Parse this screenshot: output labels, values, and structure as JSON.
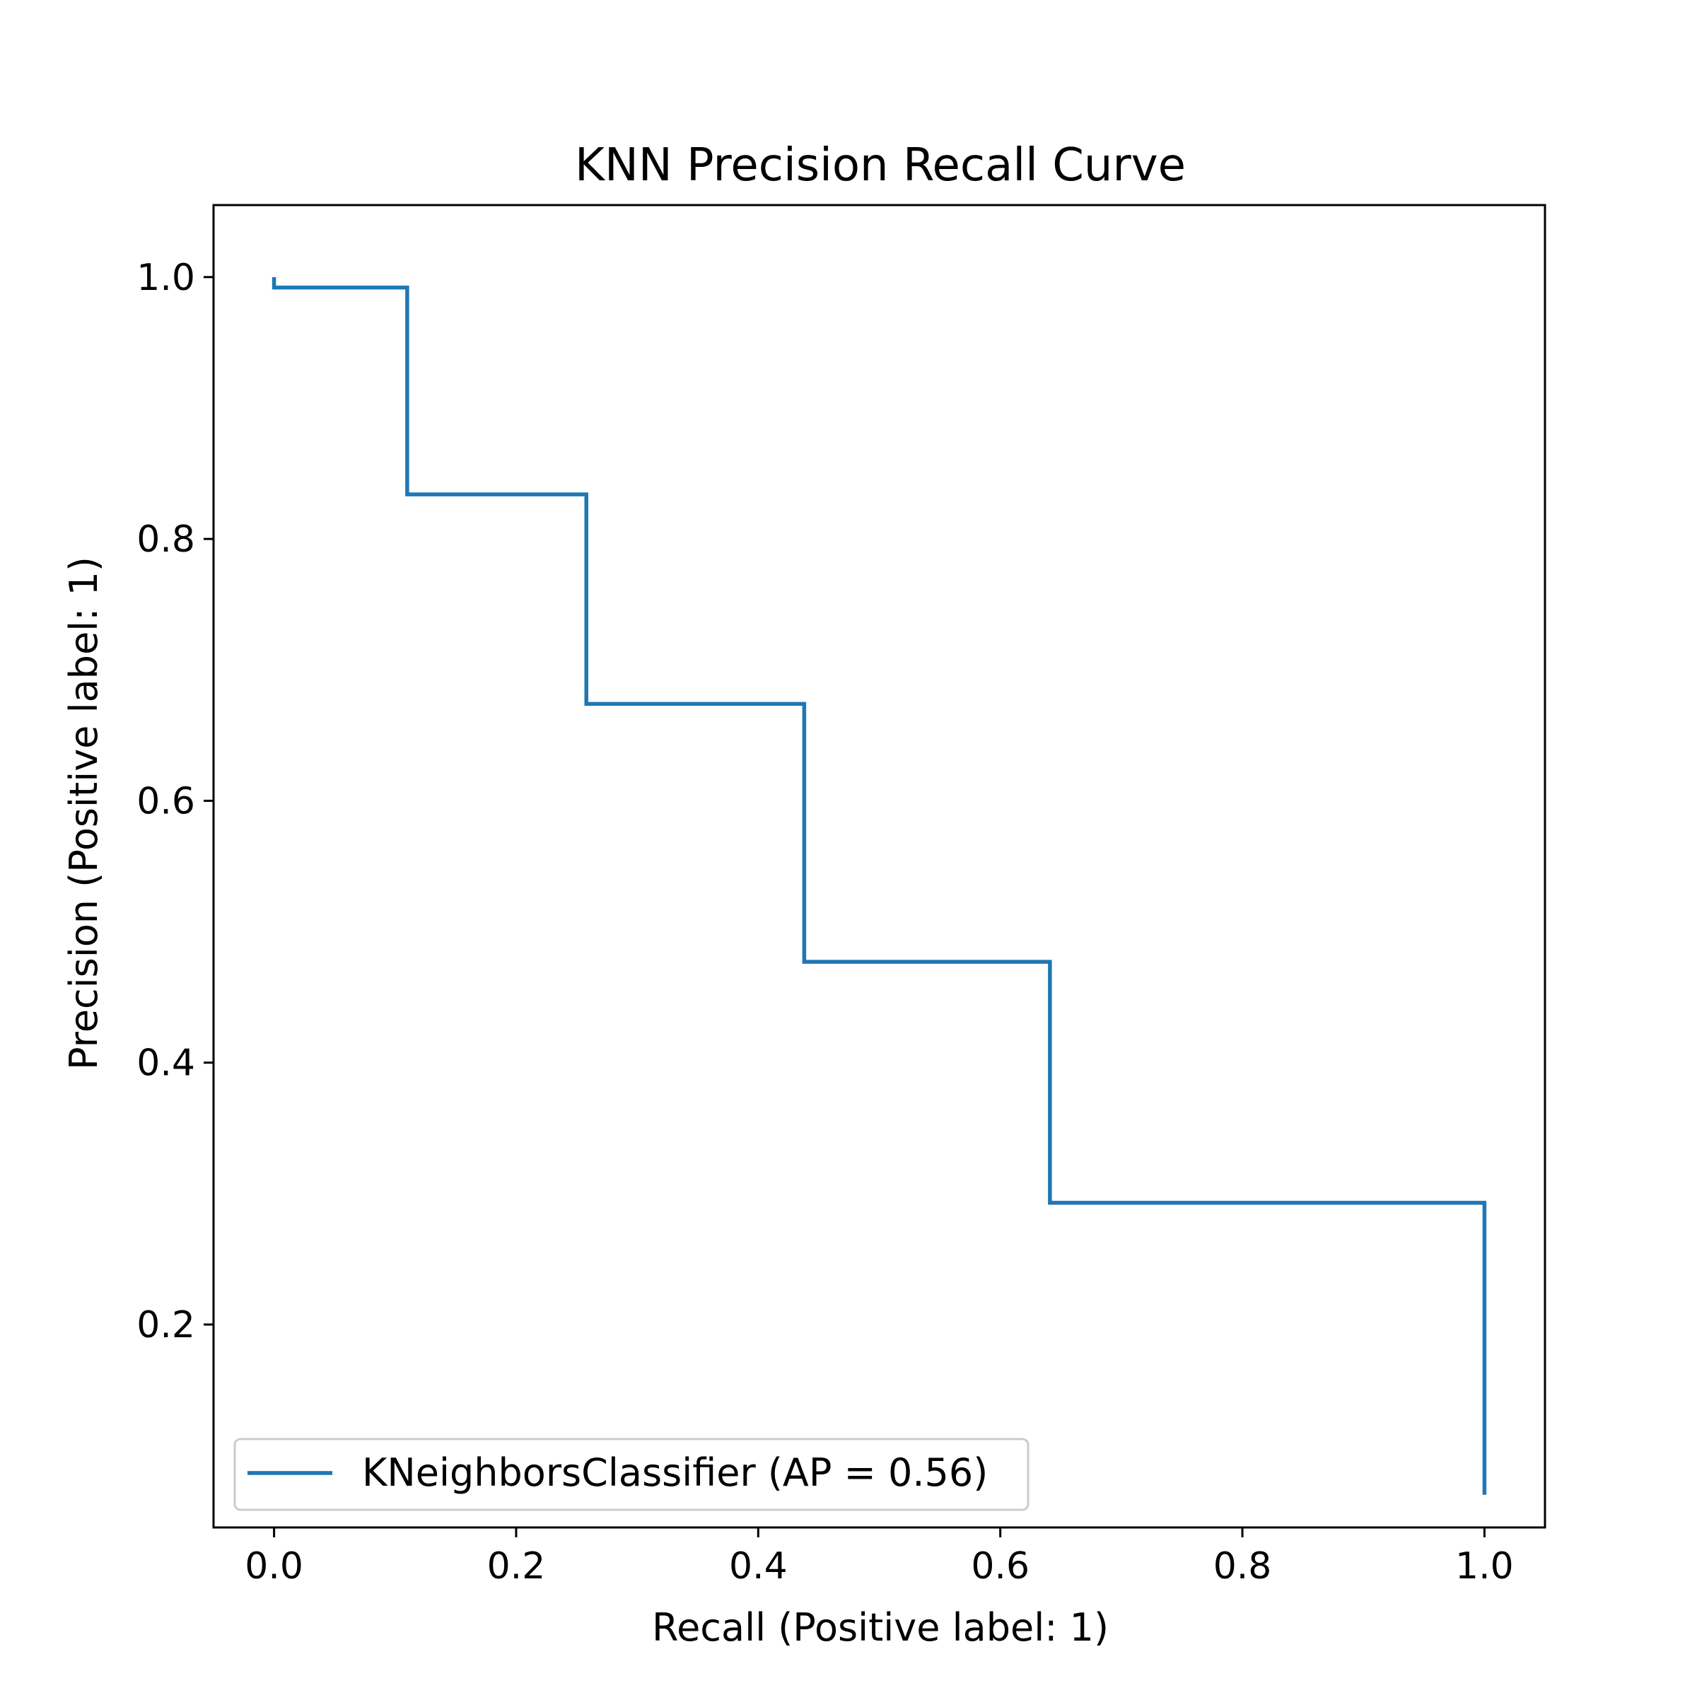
{
  "chart_data": {
    "type": "line",
    "title": "KNN Precision Recall Curve",
    "xlabel": "Recall (Positive label: 1)",
    "ylabel": "Precision (Positive label: 1)",
    "xlim": [
      -0.05,
      1.05
    ],
    "ylim": [
      0.045,
      1.055
    ],
    "grid": false,
    "legend_position": "lower-left",
    "x_ticks": [
      0.0,
      0.2,
      0.4,
      0.6,
      0.8,
      1.0
    ],
    "x_tick_labels": [
      "0.0",
      "0.2",
      "0.4",
      "0.6",
      "0.8",
      "1.0"
    ],
    "y_ticks": [
      0.2,
      0.4,
      0.6,
      0.8,
      1.0
    ],
    "y_tick_labels": [
      "0.2",
      "0.4",
      "0.6",
      "0.8",
      "1.0"
    ],
    "series": [
      {
        "name": "KNeighborsClassifier (AP = 0.56)",
        "color": "#1f77b4",
        "drawstyle": "steps-post",
        "points": [
          [
            0.0,
            1.0
          ],
          [
            0.0,
            0.992
          ],
          [
            0.11,
            0.992
          ],
          [
            0.11,
            0.834
          ],
          [
            0.258,
            0.834
          ],
          [
            0.258,
            0.674
          ],
          [
            0.438,
            0.674
          ],
          [
            0.438,
            0.477
          ],
          [
            0.641,
            0.477
          ],
          [
            0.641,
            0.293
          ],
          [
            1.0,
            0.293
          ],
          [
            1.0,
            0.07
          ]
        ]
      }
    ]
  }
}
